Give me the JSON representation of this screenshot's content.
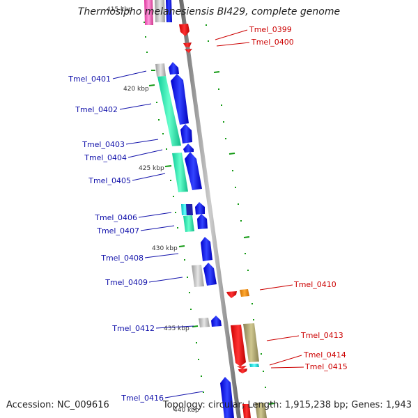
{
  "title": "Thermosipho melanesiensis BI429, complete genome",
  "accession": "Accession: NC_009616",
  "topology_line": "Topology: circular; Length: 1,915,238 bp; Genes: 1,943",
  "colors": {
    "forward_label": "#1111aa",
    "reverse_label": "#cc0000",
    "backbone": "#888888",
    "forward_gene": "#0000ee",
    "reverse_gene": "#ee0000",
    "teal": "#22ddaa",
    "grey": "#b8b8b8",
    "khaki": "#aaa070",
    "orange": "#f08c00",
    "cyan": "#00dddd",
    "pink": "#ee66bb",
    "tick": "#119911"
  },
  "kbp_labels": [
    "415 kbp",
    "420 kbp",
    "425 kbp",
    "430 kbp",
    "435 kbp",
    "440 kbp"
  ],
  "forward_labels": [
    "Tmel_0401",
    "Tmel_0402",
    "Tmel_0403",
    "Tmel_0404",
    "Tmel_0405",
    "Tmel_0406",
    "Tmel_0407",
    "Tmel_0408",
    "Tmel_0409",
    "Tmel_0412",
    "Tmel_0416"
  ],
  "reverse_labels": [
    "Tmel_0399",
    "Tmel_0400",
    "Tmel_0410",
    "Tmel_0413",
    "Tmel_0414",
    "Tmel_0415"
  ]
}
